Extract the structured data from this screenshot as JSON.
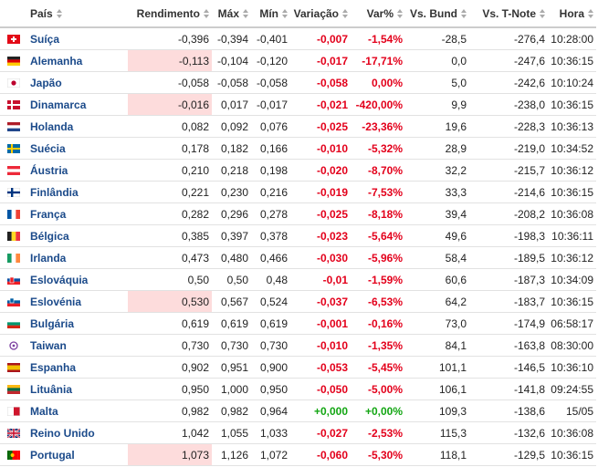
{
  "table": {
    "headers": [
      "País",
      "Rendimento",
      "Máx",
      "Mín",
      "Variação",
      "Var%",
      "Vs. Bund",
      "Vs. T-Note",
      "Hora"
    ],
    "rows": [
      {
        "cells": [
          "Suíça",
          "-0,396",
          "-0,394",
          "-0,401",
          "-0,007",
          "-1,54%",
          "-28,5",
          "-276,4",
          "10:28:00"
        ]
      },
      {
        "cells": [
          "Alemanha",
          "-0,113",
          "-0,104",
          "-0,120",
          "-0,017",
          "-17,71%",
          "0,0",
          "-247,6",
          "10:36:15"
        ],
        "highlight": true
      },
      {
        "cells": [
          "Japão",
          "-0,058",
          "-0,058",
          "-0,058",
          "-0,058",
          "0,00%",
          "5,0",
          "-242,6",
          "10:10:24"
        ]
      },
      {
        "cells": [
          "Dinamarca",
          "-0,016",
          "0,017",
          "-0,017",
          "-0,021",
          "-420,00%",
          "9,9",
          "-238,0",
          "10:36:15"
        ],
        "highlight": true
      },
      {
        "cells": [
          "Holanda",
          "0,082",
          "0,092",
          "0,076",
          "-0,025",
          "-23,36%",
          "19,6",
          "-228,3",
          "10:36:13"
        ]
      },
      {
        "cells": [
          "Suécia",
          "0,178",
          "0,182",
          "0,166",
          "-0,010",
          "-5,32%",
          "28,9",
          "-219,0",
          "10:34:52"
        ]
      },
      {
        "cells": [
          "Áustria",
          "0,210",
          "0,218",
          "0,198",
          "-0,020",
          "-8,70%",
          "32,2",
          "-215,7",
          "10:36:12"
        ]
      },
      {
        "cells": [
          "Finlândia",
          "0,221",
          "0,230",
          "0,216",
          "-0,019",
          "-7,53%",
          "33,3",
          "-214,6",
          "10:36:15"
        ]
      },
      {
        "cells": [
          "França",
          "0,282",
          "0,296",
          "0,278",
          "-0,025",
          "-8,18%",
          "39,4",
          "-208,2",
          "10:36:08"
        ]
      },
      {
        "cells": [
          "Bélgica",
          "0,385",
          "0,397",
          "0,378",
          "-0,023",
          "-5,64%",
          "49,6",
          "-198,3",
          "10:36:11"
        ]
      },
      {
        "cells": [
          "Irlanda",
          "0,473",
          "0,480",
          "0,466",
          "-0,030",
          "-5,96%",
          "58,4",
          "-189,5",
          "10:36:12"
        ]
      },
      {
        "cells": [
          "Eslováquia",
          "0,50",
          "0,50",
          "0,48",
          "-0,01",
          "-1,59%",
          "60,6",
          "-187,3",
          "10:34:09"
        ]
      },
      {
        "cells": [
          "Eslovénia",
          "0,530",
          "0,567",
          "0,524",
          "-0,037",
          "-6,53%",
          "64,2",
          "-183,7",
          "10:36:15"
        ],
        "highlight": true
      },
      {
        "cells": [
          "Bulgária",
          "0,619",
          "0,619",
          "0,619",
          "-0,001",
          "-0,16%",
          "73,0",
          "-174,9",
          "06:58:17"
        ]
      },
      {
        "cells": [
          "Taiwan",
          "0,730",
          "0,730",
          "0,730",
          "-0,010",
          "-1,35%",
          "84,1",
          "-163,8",
          "08:30:00"
        ]
      },
      {
        "cells": [
          "Espanha",
          "0,902",
          "0,951",
          "0,900",
          "-0,053",
          "-5,45%",
          "101,1",
          "-146,5",
          "10:36:10"
        ]
      },
      {
        "cells": [
          "Lituânia",
          "0,950",
          "1,000",
          "0,950",
          "-0,050",
          "-5,00%",
          "106,1",
          "-141,8",
          "09:24:55"
        ]
      },
      {
        "cells": [
          "Malta",
          "0,982",
          "0,982",
          "0,964",
          "+0,000",
          "+0,00%",
          "109,3",
          "-138,6",
          "15/05"
        ]
      },
      {
        "cells": [
          "Reino Unido",
          "1,042",
          "1,055",
          "1,033",
          "-0,027",
          "-2,53%",
          "115,3",
          "-132,6",
          "10:36:08"
        ]
      },
      {
        "cells": [
          "Portugal",
          "1,073",
          "1,126",
          "1,072",
          "-0,060",
          "-5,30%",
          "118,1",
          "-129,5",
          "10:36:15"
        ],
        "highlight": true
      }
    ]
  }
}
